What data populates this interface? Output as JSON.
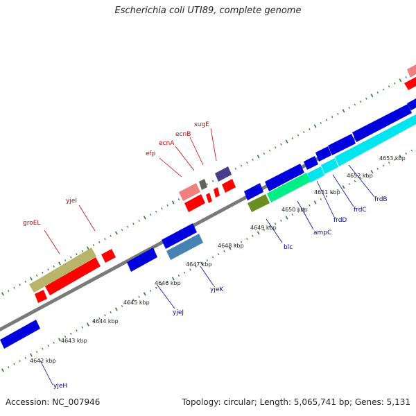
{
  "title": "Escherichia coli UTI89, complete genome",
  "footer": {
    "accession": "Accession: NC_007946",
    "topology": "Topology: circular; Length: 5,065,741 bp; Genes: 5,131"
  },
  "colors": {
    "backbone": "#7a7a7a",
    "tick": "#1f7f1f",
    "label_forward": "#cc0000",
    "label_reverse": "#0000aa"
  },
  "ticks": [
    "4642 kbp",
    "4643 kbp",
    "4644 kbp",
    "4645 kbp",
    "4646 kbp",
    "4647 kbp",
    "4648 kbp",
    "4649 kbp",
    "4650 kbp",
    "4651 kbp",
    "4652 kbp",
    "4653 kbp"
  ],
  "genes_forward": [
    {
      "name": "groEL",
      "color": "#b8b46a"
    },
    {
      "name": "yjeI",
      "color": "#ff0000"
    },
    {
      "name": "efp",
      "color": "#f08080"
    },
    {
      "name": "ecnA",
      "color": "#ff0000"
    },
    {
      "name": "ecnB",
      "color": "#606060"
    },
    {
      "name": "sugE",
      "color": "#483d8b"
    }
  ],
  "genes_reverse": [
    {
      "name": "yjeH",
      "color": "#0000dd"
    },
    {
      "name": "yjeJ",
      "color": "#0000dd"
    },
    {
      "name": "yjeK",
      "color": "#4682b4"
    },
    {
      "name": "blc",
      "color": "#6b8e23"
    },
    {
      "name": "ampC",
      "color": "#00ee88"
    },
    {
      "name": "frdD",
      "color": "#00e5ee"
    },
    {
      "name": "frdC",
      "color": "#00e5ee"
    },
    {
      "name": "frdB",
      "color": "#00e5ee"
    }
  ]
}
